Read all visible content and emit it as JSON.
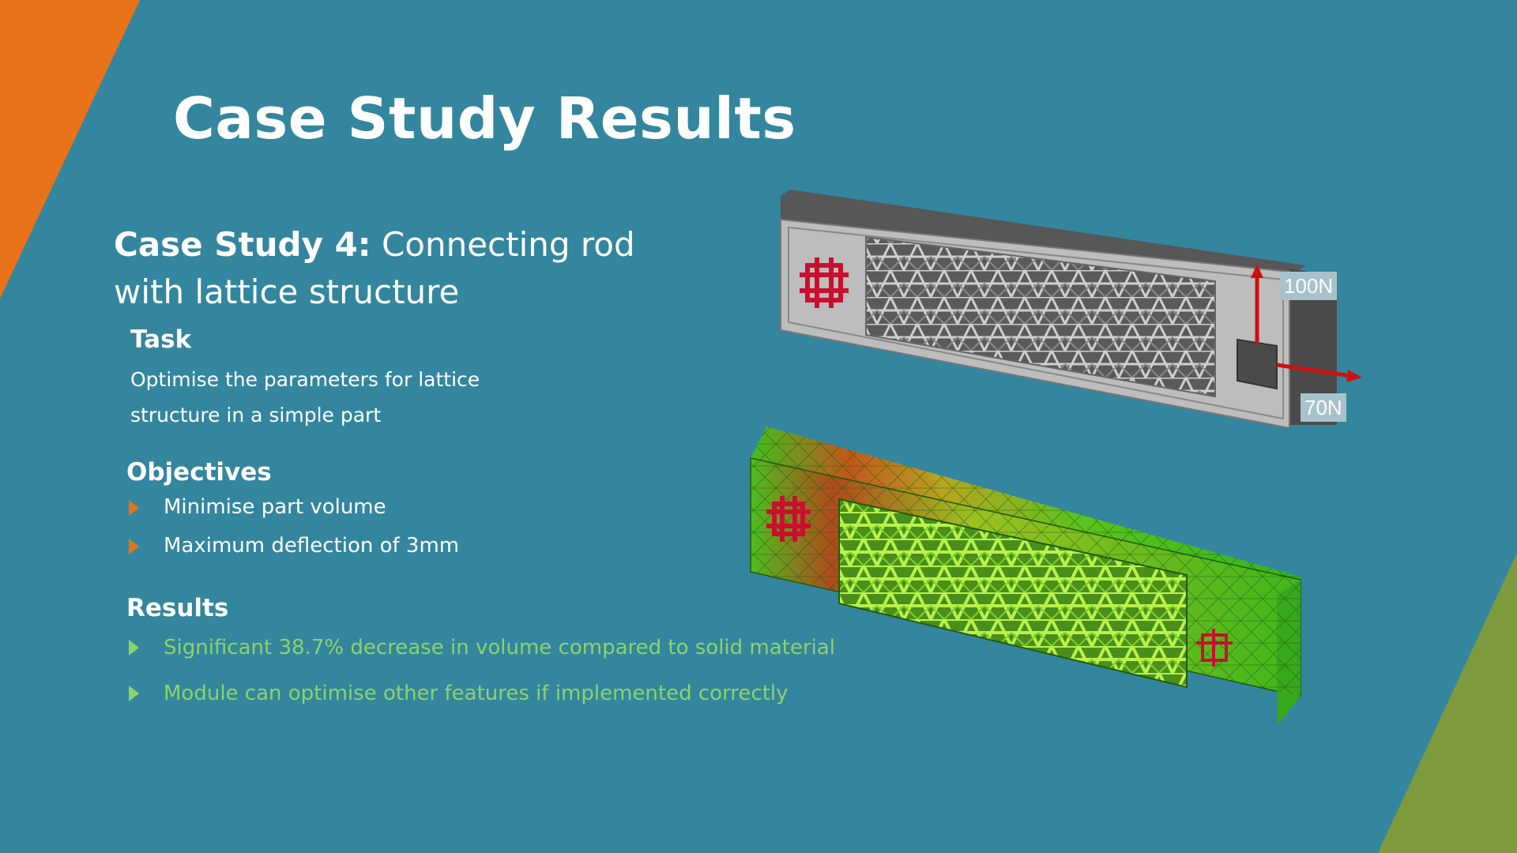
{
  "slide": {
    "title": "Case Study Results",
    "case_study": {
      "label": "Case Study 4:",
      "name": " Connecting rod with lattice structure"
    },
    "task": {
      "heading": "Task",
      "text": "Optimise the parameters for lattice structure in a simple part"
    },
    "objectives": {
      "heading": "Objectives",
      "items": [
        "Minimise part volume",
        "Maximum deflection of 3mm"
      ]
    },
    "results": {
      "heading": "Results",
      "items": [
        "Significant 38.7% decrease in volume compared to solid material",
        "Module can optimise other features if implemented correctly"
      ]
    },
    "figure": {
      "force_vertical": "100N",
      "force_horizontal": "70N"
    }
  },
  "colors": {
    "background": "#33869E",
    "accent_orange": "#E8731A",
    "accent_green": "#7D9A3C",
    "result_text": "#8ED36A",
    "force_arrow": "#CC1111"
  }
}
